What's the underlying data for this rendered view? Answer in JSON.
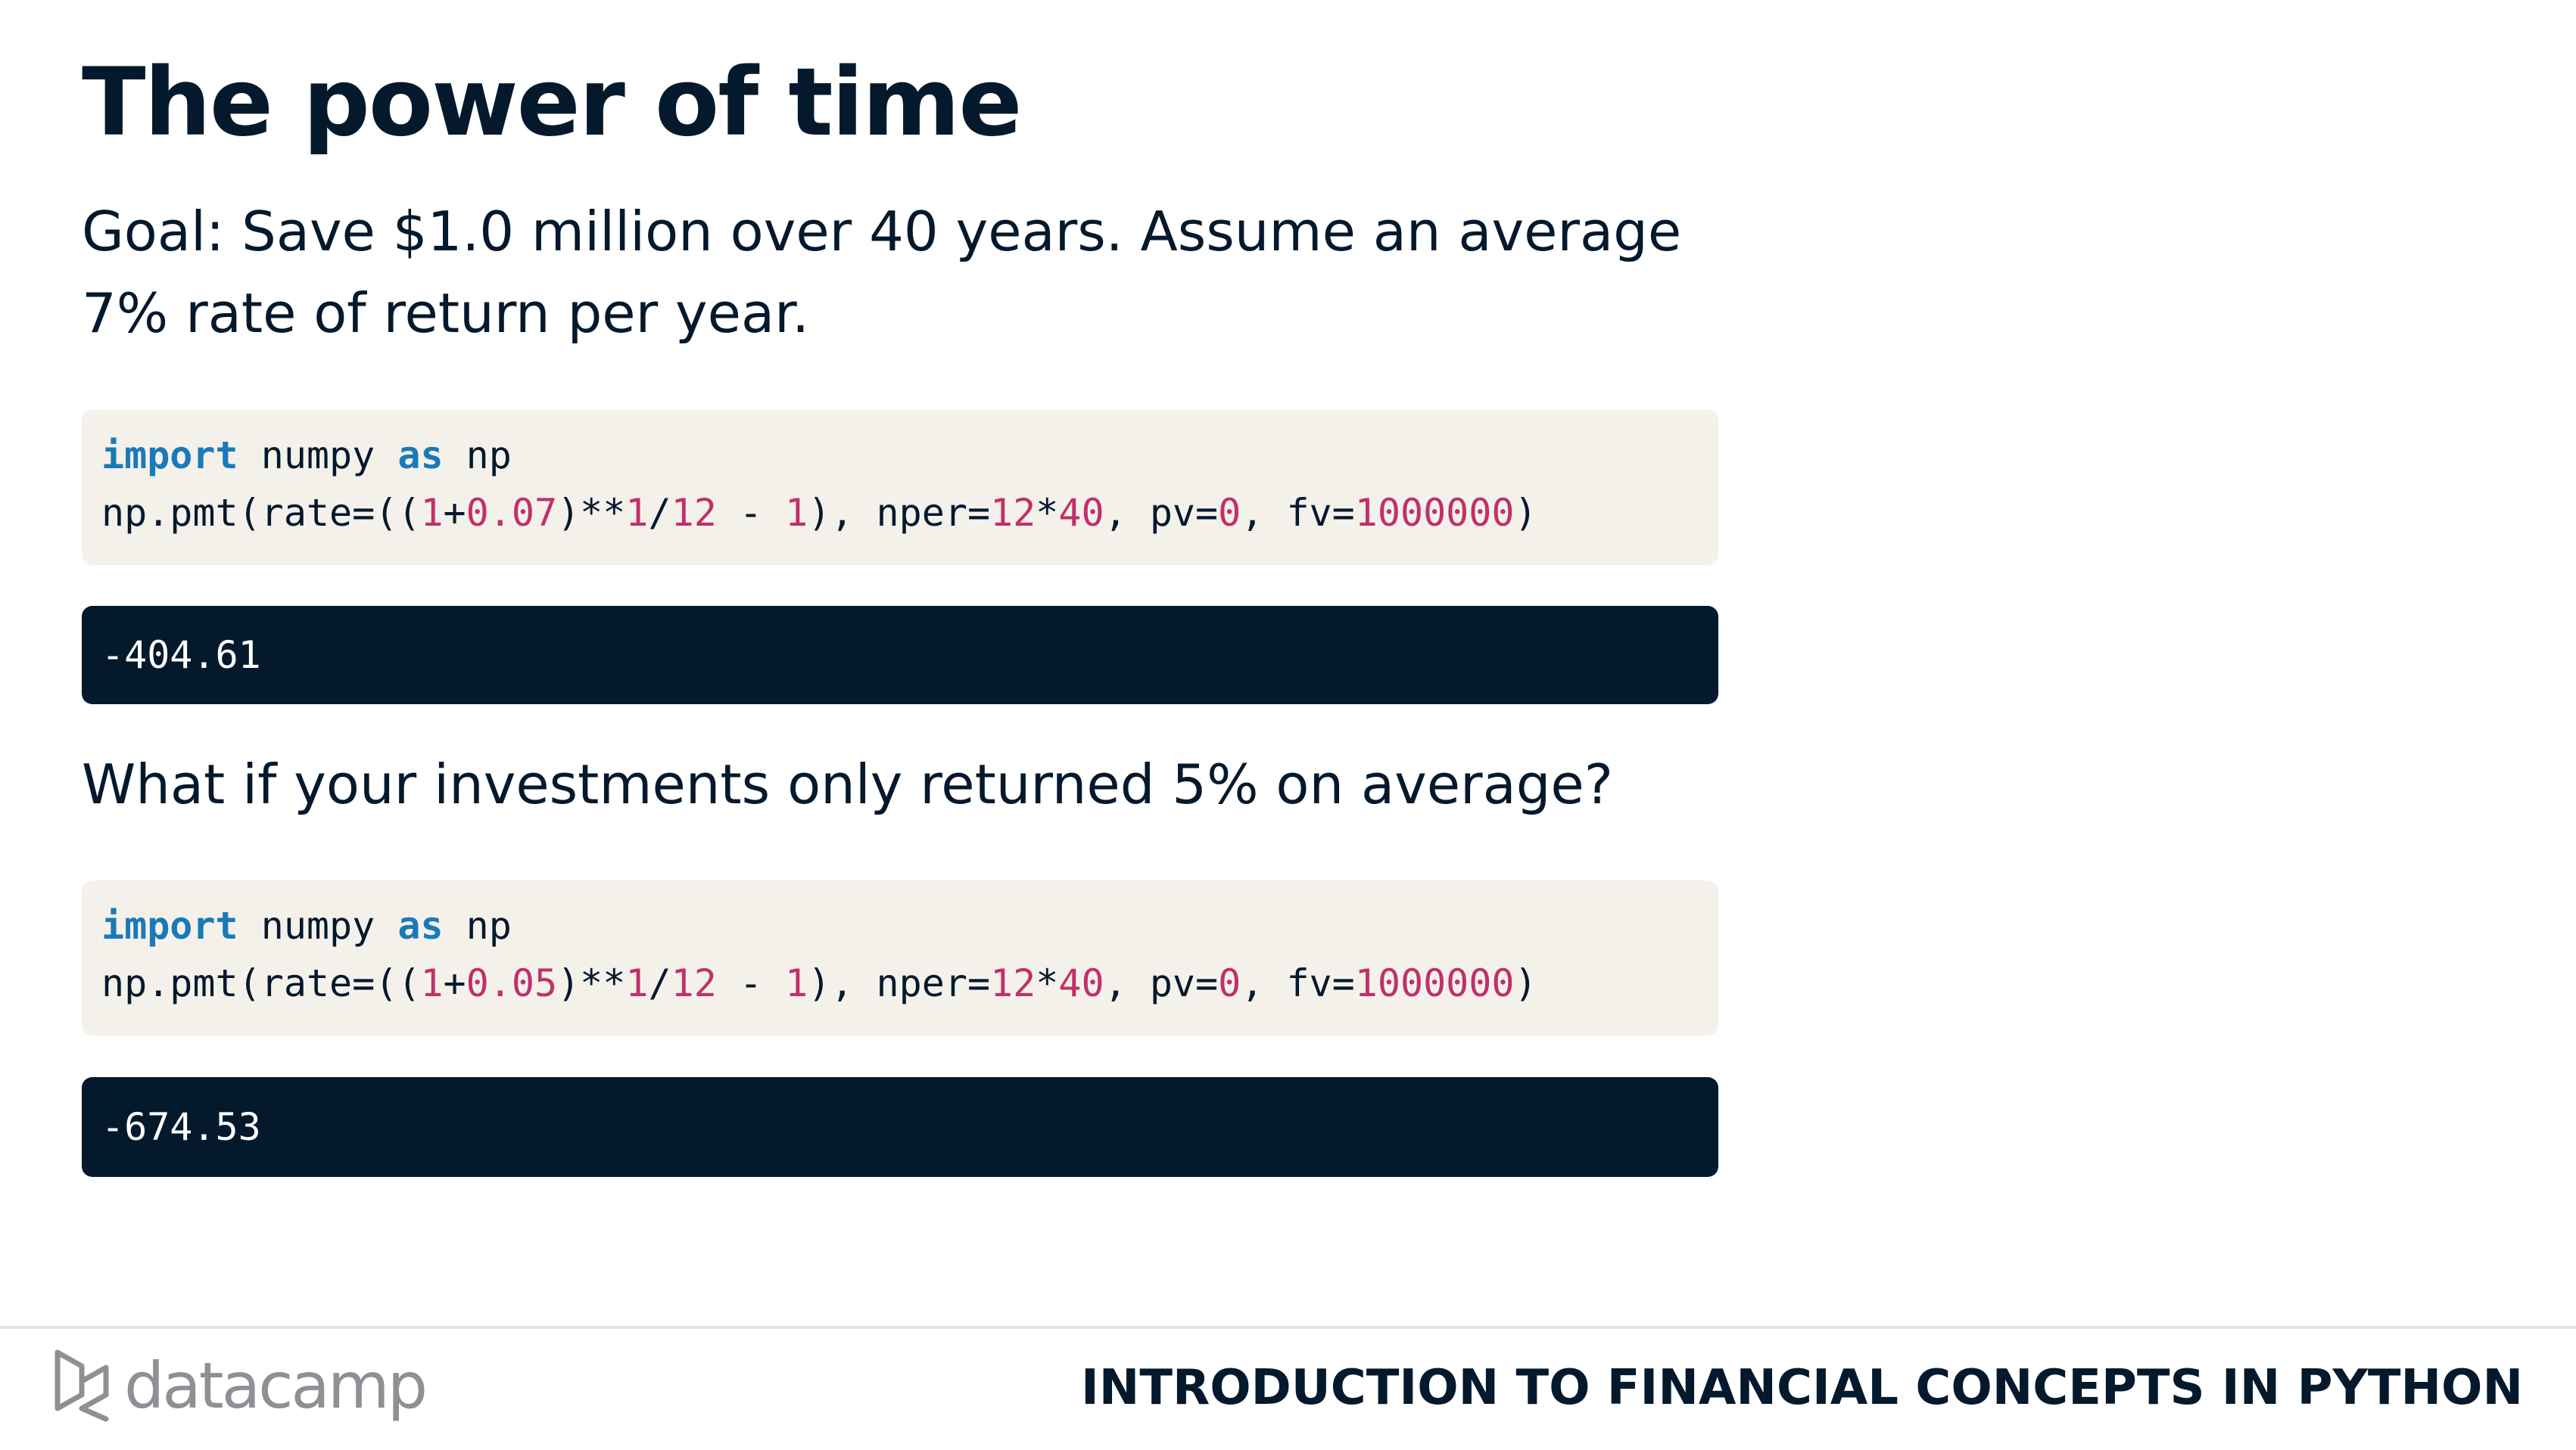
{
  "slide": {
    "title": "The power of time",
    "goal_text": "Goal: Save $1.0 million over 40 years. Assume an average 7% rate of return per year.",
    "question_text": "What if your investments only returned 5% on average?"
  },
  "code_blocks": [
    {
      "import": {
        "kw1": "import",
        "mod": " numpy ",
        "kw2": "as",
        "alias": " np"
      },
      "call": {
        "p1": "np.pmt(rate=((",
        "n1": "1",
        "p2": "+",
        "n2": "0.07",
        "p3": ")**",
        "n3": "1",
        "p4": "/",
        "n4": "12",
        "p5": " - ",
        "n5": "1",
        "p6": "), nper=",
        "n6": "12",
        "p7": "*",
        "n7": "40",
        "p8": ", pv=",
        "n8": "0",
        "p9": ", fv=",
        "n9": "1000000",
        "p10": ")"
      },
      "output": "-404.61"
    },
    {
      "import": {
        "kw1": "import",
        "mod": " numpy ",
        "kw2": "as",
        "alias": " np"
      },
      "call": {
        "p1": "np.pmt(rate=((",
        "n1": "1",
        "p2": "+",
        "n2": "0.05",
        "p3": ")**",
        "n3": "1",
        "p4": "/",
        "n4": "12",
        "p5": " - ",
        "n5": "1",
        "p6": "), nper=",
        "n6": "12",
        "p7": "*",
        "n7": "40",
        "p8": ", pv=",
        "n8": "0",
        "p9": ", fv=",
        "n9": "1000000",
        "p10": ")"
      },
      "output": "-674.53"
    }
  ],
  "footer": {
    "logo_icon": "datacamp-logo-icon",
    "logo_text": "datacamp",
    "course_title": "INTRODUCTION TO FINANCIAL CONCEPTS IN PYTHON"
  },
  "colors": {
    "text": "#05192d",
    "code_bg": "#f4f1eb",
    "output_bg": "#05192d",
    "keyword": "#1a7ab8",
    "number": "#c0306a",
    "logo": "#8d9196"
  }
}
